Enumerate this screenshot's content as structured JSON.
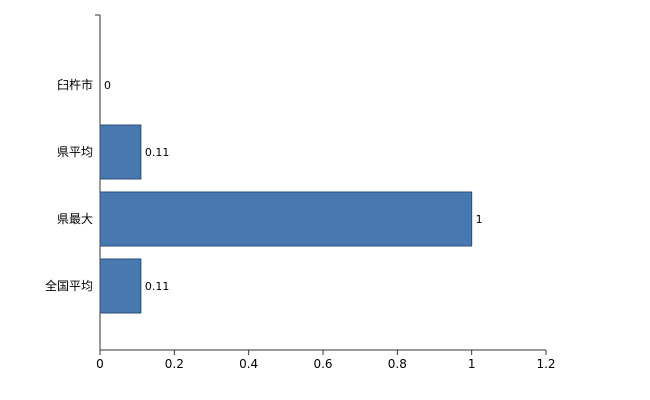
{
  "chart_data": {
    "type": "bar",
    "orientation": "horizontal",
    "title": "",
    "categories": [
      "臼杵市",
      "県平均",
      "県最大",
      "全国平均"
    ],
    "values": [
      0,
      0.11,
      1,
      0.11
    ],
    "value_labels": [
      "0",
      "0.11",
      "1",
      "0.11"
    ],
    "xlim": [
      0,
      1.2
    ],
    "xticks": [
      0,
      0.2,
      0.4,
      0.6,
      0.8,
      1,
      1.2
    ],
    "xtick_labels": [
      "0",
      "0.2",
      "0.4",
      "0.6",
      "0.8",
      "1",
      "1.2"
    ],
    "legend": "none",
    "grid": "off",
    "colors": {
      "bar_fill": "#4878b0",
      "bar_stroke": "#2c4d74",
      "axis": "#333333",
      "text": "#000000",
      "background": "#ffffff"
    }
  }
}
